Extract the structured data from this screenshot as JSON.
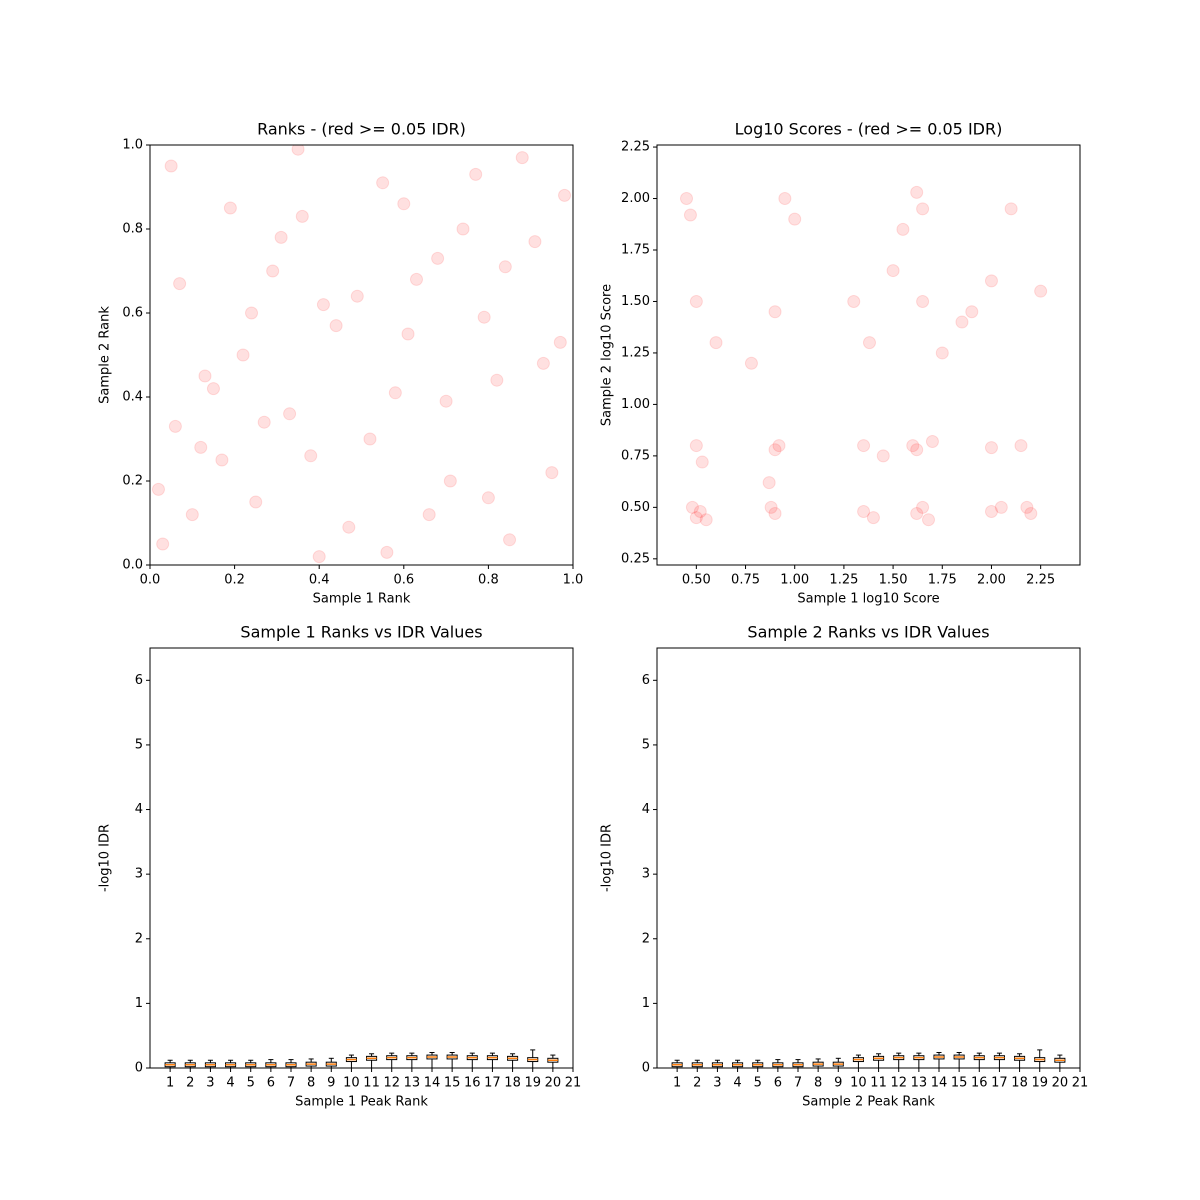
{
  "chart_data": [
    {
      "type": "scatter",
      "title": "Ranks - (red >= 0.05 IDR)",
      "xlabel": "Sample 1 Rank",
      "ylabel": "Sample 2 Rank",
      "color": "#ff0000",
      "opacity": 0.12,
      "xlim": [
        0,
        1
      ],
      "ylim": [
        0,
        1
      ],
      "xticks": [
        {
          "value": 0,
          "label": "0.0"
        },
        {
          "value": 0.2,
          "label": "0.2"
        },
        {
          "value": 0.4,
          "label": "0.4"
        },
        {
          "value": 0.6,
          "label": "0.6"
        },
        {
          "value": 0.8,
          "label": "0.8"
        },
        {
          "value": 1,
          "label": "1.0"
        }
      ],
      "yticks": [
        {
          "value": 0,
          "label": "0.0"
        },
        {
          "value": 0.2,
          "label": "0.2"
        },
        {
          "value": 0.4,
          "label": "0.4"
        },
        {
          "value": 0.6,
          "label": "0.6"
        },
        {
          "value": 0.8,
          "label": "0.8"
        },
        {
          "value": 1,
          "label": "1.0"
        }
      ],
      "x": [
        0.03,
        0.12,
        0.25,
        0.41,
        0.55,
        0.68,
        0.82,
        0.95,
        0.07,
        0.19,
        0.33,
        0.47,
        0.61,
        0.74,
        0.88,
        0.02,
        0.15,
        0.29,
        0.38,
        0.52,
        0.66,
        0.79,
        0.91,
        0.05,
        0.22,
        0.36,
        0.49,
        0.58,
        0.71,
        0.85,
        0.98,
        0.1,
        0.27,
        0.44,
        0.63,
        0.77,
        0.93,
        0.17,
        0.31,
        0.56,
        0.7,
        0.84,
        0.06,
        0.24,
        0.4,
        0.6,
        0.8,
        0.97,
        0.13,
        0.35
      ],
      "y": [
        0.05,
        0.28,
        0.15,
        0.62,
        0.91,
        0.73,
        0.44,
        0.22,
        0.67,
        0.85,
        0.36,
        0.09,
        0.55,
        0.8,
        0.97,
        0.18,
        0.42,
        0.7,
        0.26,
        0.3,
        0.12,
        0.59,
        0.77,
        0.95,
        0.5,
        0.83,
        0.64,
        0.41,
        0.2,
        0.06,
        0.88,
        0.12,
        0.34,
        0.57,
        0.68,
        0.93,
        0.48,
        0.25,
        0.78,
        0.03,
        0.39,
        0.71,
        0.33,
        0.6,
        0.02,
        0.86,
        0.16,
        0.53,
        0.45,
        0.99
      ]
    },
    {
      "type": "scatter",
      "title": "Log10 Scores - (red >= 0.05 IDR)",
      "xlabel": "Sample 1 log10 Score",
      "ylabel": "Sample 2 log10 Score",
      "color": "#ff0000",
      "opacity": 0.12,
      "xlim": [
        0.3,
        2.45
      ],
      "ylim": [
        0.22,
        2.26
      ],
      "xticks": [
        {
          "value": 0.5,
          "label": "0.50"
        },
        {
          "value": 0.75,
          "label": "0.75"
        },
        {
          "value": 1,
          "label": "1.00"
        },
        {
          "value": 1.25,
          "label": "1.25"
        },
        {
          "value": 1.5,
          "label": "1.50"
        },
        {
          "value": 1.75,
          "label": "1.75"
        },
        {
          "value": 2,
          "label": "2.00"
        },
        {
          "value": 2.25,
          "label": "2.25"
        }
      ],
      "yticks": [
        {
          "value": 0.25,
          "label": "0.25"
        },
        {
          "value": 0.5,
          "label": "0.50"
        },
        {
          "value": 0.75,
          "label": "0.75"
        },
        {
          "value": 1,
          "label": "1.00"
        },
        {
          "value": 1.25,
          "label": "1.25"
        },
        {
          "value": 1.5,
          "label": "1.50"
        },
        {
          "value": 1.75,
          "label": "1.75"
        },
        {
          "value": 2,
          "label": "2.00"
        },
        {
          "value": 2.25,
          "label": "2.25"
        }
      ],
      "x": [
        0.5,
        0.52,
        0.48,
        0.55,
        0.9,
        0.88,
        0.92,
        0.5,
        0.53,
        0.9,
        0.87,
        1.35,
        1.4,
        1.62,
        1.65,
        1.68,
        1.6,
        2.0,
        2.05,
        2.15,
        2.2,
        1.35,
        1.45,
        1.62,
        1.7,
        2.0,
        2.18,
        1.3,
        1.65,
        1.9,
        0.5,
        0.9,
        1.65,
        2.0,
        0.47,
        0.78,
        1.38,
        1.55,
        1.75,
        2.25,
        0.6,
        1.0,
        1.5,
        1.85,
        2.1,
        0.45,
        0.95,
        1.62
      ],
      "y": [
        0.45,
        0.48,
        0.5,
        0.44,
        0.47,
        0.5,
        0.8,
        0.8,
        0.72,
        0.78,
        0.62,
        0.48,
        0.45,
        0.47,
        0.5,
        0.44,
        0.8,
        0.48,
        0.5,
        0.8,
        0.47,
        0.8,
        0.75,
        0.78,
        0.82,
        0.79,
        0.5,
        1.5,
        1.5,
        1.45,
        1.5,
        1.45,
        1.95,
        1.6,
        1.92,
        1.2,
        1.3,
        1.85,
        1.25,
        1.55,
        1.3,
        1.9,
        1.65,
        1.4,
        1.95,
        2.0,
        2.0,
        2.03
      ]
    },
    {
      "type": "box",
      "title": "Sample 1 Ranks vs IDR Values",
      "xlabel": "Sample 1 Peak Rank",
      "ylabel": "-log10 IDR",
      "color": "#000000",
      "median_color": "#ff7f0e",
      "xlim": [
        0,
        21
      ],
      "ylim": [
        0,
        6.5
      ],
      "xticks": [
        1,
        2,
        3,
        4,
        5,
        6,
        7,
        8,
        9,
        10,
        11,
        12,
        13,
        14,
        15,
        16,
        17,
        18,
        19,
        20,
        21
      ],
      "yticks": [
        0,
        1,
        2,
        3,
        4,
        5,
        6
      ],
      "positions": [
        1,
        2,
        3,
        4,
        5,
        6,
        7,
        8,
        9,
        10,
        11,
        12,
        13,
        14,
        15,
        16,
        17,
        18,
        19,
        20
      ],
      "whislo": [
        0,
        0,
        0,
        0,
        0,
        0,
        0,
        0,
        0,
        0,
        0,
        0,
        0,
        0,
        0,
        0,
        0,
        0,
        0,
        0
      ],
      "q1": [
        0.02,
        0.02,
        0.02,
        0.02,
        0.02,
        0.02,
        0.02,
        0.03,
        0.03,
        0.1,
        0.12,
        0.13,
        0.13,
        0.14,
        0.14,
        0.13,
        0.13,
        0.12,
        0.1,
        0.09
      ],
      "medians": [
        0.05,
        0.05,
        0.05,
        0.05,
        0.05,
        0.05,
        0.05,
        0.06,
        0.06,
        0.13,
        0.15,
        0.16,
        0.16,
        0.17,
        0.17,
        0.16,
        0.16,
        0.15,
        0.13,
        0.12
      ],
      "q3": [
        0.08,
        0.08,
        0.08,
        0.08,
        0.08,
        0.08,
        0.08,
        0.09,
        0.09,
        0.16,
        0.18,
        0.19,
        0.19,
        0.2,
        0.2,
        0.19,
        0.19,
        0.18,
        0.16,
        0.15
      ],
      "whishi": [
        0.12,
        0.12,
        0.12,
        0.12,
        0.12,
        0.13,
        0.13,
        0.14,
        0.15,
        0.2,
        0.22,
        0.23,
        0.23,
        0.24,
        0.24,
        0.23,
        0.23,
        0.22,
        0.28,
        0.2
      ]
    },
    {
      "type": "box",
      "title": "Sample 2 Ranks vs IDR Values",
      "xlabel": "Sample 2 Peak Rank",
      "ylabel": "-log10 IDR",
      "color": "#000000",
      "median_color": "#ff7f0e",
      "xlim": [
        0,
        21
      ],
      "ylim": [
        0,
        6.5
      ],
      "xticks": [
        1,
        2,
        3,
        4,
        5,
        6,
        7,
        8,
        9,
        10,
        11,
        12,
        13,
        14,
        15,
        16,
        17,
        18,
        19,
        20,
        21
      ],
      "yticks": [
        0,
        1,
        2,
        3,
        4,
        5,
        6
      ],
      "positions": [
        1,
        2,
        3,
        4,
        5,
        6,
        7,
        8,
        9,
        10,
        11,
        12,
        13,
        14,
        15,
        16,
        17,
        18,
        19,
        20
      ],
      "whislo": [
        0,
        0,
        0,
        0,
        0,
        0,
        0,
        0,
        0,
        0,
        0,
        0,
        0,
        0,
        0,
        0,
        0,
        0,
        0,
        0
      ],
      "q1": [
        0.02,
        0.02,
        0.02,
        0.02,
        0.02,
        0.02,
        0.02,
        0.03,
        0.03,
        0.1,
        0.12,
        0.13,
        0.13,
        0.14,
        0.14,
        0.13,
        0.13,
        0.12,
        0.1,
        0.09
      ],
      "medians": [
        0.05,
        0.05,
        0.05,
        0.05,
        0.05,
        0.05,
        0.05,
        0.06,
        0.06,
        0.13,
        0.15,
        0.16,
        0.16,
        0.17,
        0.17,
        0.16,
        0.16,
        0.15,
        0.13,
        0.12
      ],
      "q3": [
        0.08,
        0.08,
        0.08,
        0.08,
        0.08,
        0.08,
        0.08,
        0.09,
        0.09,
        0.16,
        0.18,
        0.19,
        0.19,
        0.2,
        0.2,
        0.19,
        0.19,
        0.18,
        0.16,
        0.15
      ],
      "whishi": [
        0.12,
        0.12,
        0.12,
        0.12,
        0.12,
        0.13,
        0.13,
        0.14,
        0.15,
        0.2,
        0.22,
        0.23,
        0.23,
        0.24,
        0.24,
        0.23,
        0.23,
        0.22,
        0.28,
        0.2
      ]
    }
  ]
}
